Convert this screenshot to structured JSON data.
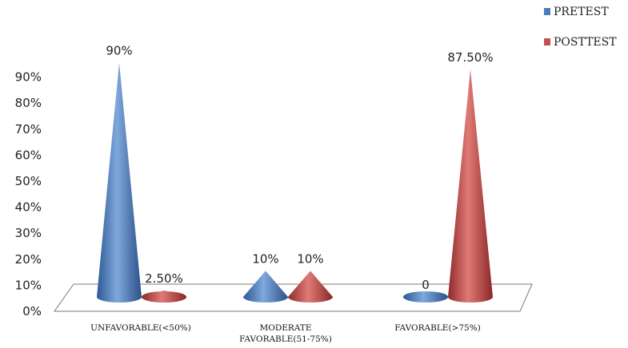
{
  "chart_data": {
    "type": "bar",
    "shape": "cone",
    "categories": [
      "UNFAVORABLE(<50%)",
      "MODERATE FAVORABLE(51-75%)",
      "FAVORABLE(>75%)"
    ],
    "category_lines": [
      [
        "UNFAVORABLE(<50%)"
      ],
      [
        "MODERATE",
        "FAVORABLE(51-75%)"
      ],
      [
        "FAVORABLE(>75%)"
      ]
    ],
    "series": [
      {
        "name": "PRETEST",
        "values": [
          90,
          10,
          0
        ],
        "labels": [
          "90%",
          "10%",
          "0"
        ],
        "color": "#4a7ebb"
      },
      {
        "name": "POSTTEST",
        "values": [
          2.5,
          10,
          87.5
        ],
        "labels": [
          "2.50%",
          "10%",
          "87.50%"
        ],
        "color": "#c0504d"
      }
    ],
    "yticks": [
      "0%",
      "10%",
      "20%",
      "30%",
      "40%",
      "50%",
      "60%",
      "70%",
      "80%",
      "90%"
    ],
    "ylim": [
      0,
      90
    ],
    "grid": false,
    "legend": "top-right",
    "title": "",
    "xlabel": "",
    "ylabel": ""
  }
}
